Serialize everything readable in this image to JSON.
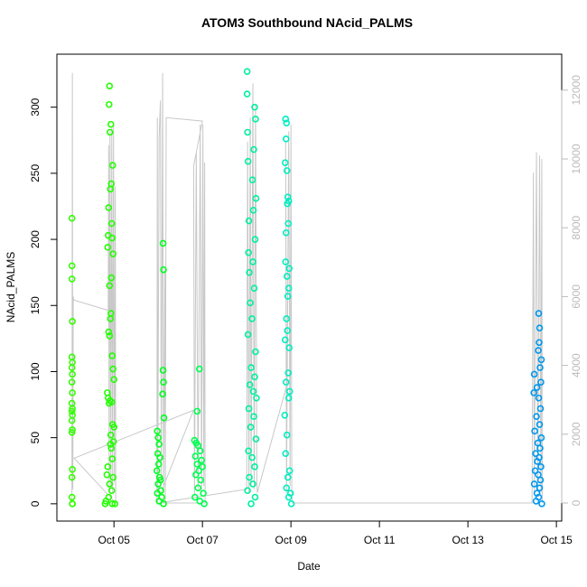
{
  "chart_data": {
    "type": "scatter",
    "title": "ATOM3 Southbound NAcid_PALMS",
    "x_label": "Date",
    "y_label": "NAcid_PALMS",
    "xlim": [
      3.71,
      15.12
    ],
    "xticks": [
      {
        "value": 5,
        "label": "Oct 05"
      },
      {
        "value": 7,
        "label": "Oct 07"
      },
      {
        "value": 9,
        "label": "Oct 09"
      },
      {
        "value": 11,
        "label": "Oct 11"
      },
      {
        "value": 13,
        "label": "Oct 13"
      },
      {
        "value": 15,
        "label": "Oct 15"
      }
    ],
    "ylim": [
      -13.08,
      340.08
    ],
    "yticks": [
      0,
      50,
      100,
      150,
      200,
      250,
      300
    ],
    "y2lim": [
      -525,
      13045
    ],
    "y2ticks": [
      0,
      2000,
      4000,
      6000,
      8000,
      10000,
      12000
    ],
    "y2_color": "#bbbbbb",
    "series": [
      {
        "color": "#33ff00",
        "x": [
          4.05,
          4.05,
          4.05,
          4.06,
          4.05,
          4.06,
          4.05,
          4.06,
          4.05,
          4.06,
          4.05,
          4.06,
          4.05,
          4.06,
          4.05,
          4.06,
          4.05,
          4.06,
          4.05,
          4.05,
          4.06,
          4.06
        ],
        "values": [
          216,
          180,
          170,
          138,
          111,
          107,
          103,
          98,
          92,
          84,
          76,
          72,
          70,
          67,
          63,
          56,
          54,
          26,
          20,
          5,
          0,
          0
        ]
      },
      {
        "color": "#22ff00",
        "x": [
          4.9,
          4.89,
          4.93,
          4.91,
          4.97,
          4.94,
          4.92,
          4.88,
          4.95,
          4.87,
          4.96,
          4.86,
          4.98,
          4.94,
          4.9,
          4.93,
          4.92,
          4.88,
          4.9,
          4.96,
          4.98,
          5.0,
          4.85,
          4.87,
          4.91,
          4.95,
          4.89,
          4.97,
          5.0,
          4.93,
          4.99,
          4.92,
          4.94,
          4.96,
          4.86,
          4.84,
          4.98,
          4.9,
          4.95,
          4.88,
          4.82,
          4.8,
          4.96,
          5.02
        ],
        "values": [
          316,
          302,
          287,
          281,
          256,
          242,
          238,
          224,
          212,
          203,
          201,
          194,
          189,
          171,
          165,
          144,
          140,
          130,
          127,
          112,
          102,
          94,
          84,
          80,
          78,
          77,
          76,
          60,
          58,
          52,
          47,
          45,
          42,
          34,
          28,
          22,
          20,
          15,
          10,
          5,
          2,
          0,
          0,
          0
        ]
      },
      {
        "color": "#00ff20",
        "x": [
          6.11,
          6.12,
          6.11,
          6.12,
          6.1,
          6.13,
          5.98,
          6.0,
          6.02,
          5.99,
          6.04,
          6.01,
          5.97,
          6.03,
          6.05,
          6.0,
          6.06,
          5.98,
          6.08,
          6.02,
          6.12
        ],
        "values": [
          197,
          177,
          101,
          92,
          83,
          65,
          55,
          50,
          45,
          38,
          35,
          30,
          25,
          20,
          18,
          15,
          10,
          8,
          5,
          2,
          0
        ]
      },
      {
        "color": "#00ff50",
        "x": [
          6.93,
          6.88,
          6.82,
          6.86,
          6.9,
          6.95,
          6.84,
          6.98,
          6.88,
          7.0,
          6.92,
          6.85,
          6.96,
          6.9,
          7.02,
          6.83,
          6.94,
          7.04
        ],
        "values": [
          102,
          70,
          48,
          46,
          44,
          40,
          36,
          33,
          30,
          28,
          25,
          22,
          18,
          12,
          8,
          5,
          2,
          0
        ]
      },
      {
        "color": "#00f0a0",
        "x": [
          8.01,
          8.01,
          8.18,
          8.2,
          8.02,
          8.16,
          8.03,
          8.13,
          8.21,
          8.15,
          8.05,
          8.19,
          8.04,
          8.14,
          8.06,
          8.17,
          8.08,
          8.12,
          8.03,
          8.2,
          8.1,
          8.18,
          8.07,
          8.15,
          8.22,
          8.05,
          8.16,
          8.09,
          8.21,
          8.04,
          8.12,
          8.18,
          8.06,
          8.14,
          8.02,
          8.19,
          8.1
        ],
        "values": [
          327,
          310,
          300,
          291,
          281,
          268,
          259,
          245,
          231,
          222,
          214,
          200,
          190,
          183,
          175,
          163,
          152,
          140,
          128,
          115,
          103,
          96,
          90,
          85,
          80,
          72,
          66,
          58,
          49,
          40,
          35,
          28,
          20,
          15,
          10,
          5,
          0
        ]
      },
      {
        "color": "#00eec0",
        "x": [
          8.88,
          8.9,
          8.89,
          8.87,
          8.91,
          8.93,
          8.95,
          8.92,
          8.94,
          8.89,
          8.88,
          8.96,
          8.91,
          8.95,
          8.93,
          8.9,
          8.92,
          8.87,
          8.96,
          8.94,
          8.89,
          8.97,
          8.95,
          8.86,
          8.91,
          8.88,
          8.97,
          8.93,
          8.9,
          8.99,
          8.95,
          9.01
        ],
        "values": [
          291,
          288,
          276,
          258,
          252,
          232,
          229,
          227,
          212,
          205,
          183,
          178,
          172,
          163,
          157,
          140,
          131,
          124,
          118,
          99,
          92,
          85,
          80,
          67,
          52,
          38,
          25,
          20,
          12,
          8,
          5,
          0
        ]
      },
      {
        "color": "#0099ee",
        "x": [
          14.6,
          14.62,
          14.61,
          14.59,
          14.66,
          14.63,
          14.5,
          14.65,
          14.56,
          14.49,
          14.6,
          14.64,
          14.55,
          14.62,
          14.51,
          14.66,
          14.58,
          14.63,
          14.53,
          14.61,
          14.57,
          14.65,
          14.52,
          14.59,
          14.64,
          14.5,
          14.62,
          14.56,
          14.6,
          14.54,
          14.67
        ],
        "values": [
          144,
          133,
          122,
          116,
          109,
          103,
          98,
          92,
          88,
          84,
          80,
          72,
          66,
          60,
          55,
          50,
          46,
          42,
          38,
          35,
          32,
          28,
          25,
          22,
          18,
          15,
          12,
          8,
          5,
          2,
          0
        ]
      },
      {
        "type": "line",
        "axis": "y2",
        "color": "#c8c8c8",
        "x": [
          4.05,
          4.06,
          4.07,
          4.08,
          4.09,
          4.87,
          4.88,
          4.89,
          4.91,
          4.93,
          4.95,
          4.97,
          4.99,
          5.01,
          5.03,
          5.04,
          4.1,
          6.8,
          5.97,
          5.98,
          5.99,
          6.02,
          6.05,
          6.07,
          6.1,
          6.12,
          6.15,
          6.16,
          6.18,
          7.0,
          6.8,
          6.82,
          6.86,
          6.9,
          6.95,
          6.98,
          7.01,
          7.03,
          7.05,
          7.06,
          6.0,
          8.0,
          8.02,
          8.05,
          8.08,
          8.1,
          8.14,
          8.17,
          8.2,
          8.23,
          8.24,
          8.9,
          8.88,
          8.9,
          8.95,
          8.98,
          9.0,
          9.02,
          9.03,
          14.45,
          14.48,
          14.5,
          14.55,
          14.58,
          14.62,
          14.65,
          14.67,
          14.68
        ],
        "values": [
          0,
          12500,
          400,
          6000,
          5900,
          5600,
          10400,
          300,
          10800,
          500,
          10900,
          300,
          11000,
          600,
          9200,
          0,
          1300,
          2700,
          0,
          11200,
          300,
          10600,
          11700,
          600,
          12500,
          300,
          6800,
          0,
          11200,
          11100,
          9800,
          200,
          10200,
          400,
          11000,
          300,
          11000,
          500,
          9900,
          0,
          0,
          400,
          10500,
          300,
          11200,
          500,
          12200,
          400,
          11600,
          600,
          300,
          3400,
          10500,
          300,
          10800,
          500,
          11000,
          200,
          0,
          0,
          9600,
          300,
          10200,
          400,
          10100,
          300,
          10000,
          0
        ]
      }
    ]
  }
}
